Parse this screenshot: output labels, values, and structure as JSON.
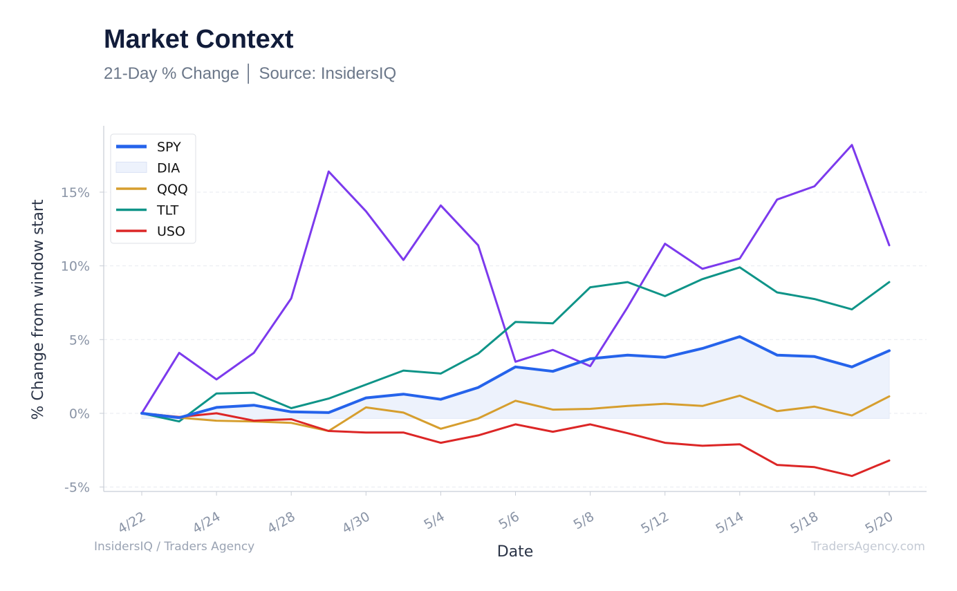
{
  "header": {
    "title": "Market Context",
    "subtitle": "21-Day % Change │ Source: InsidersIQ"
  },
  "footer": {
    "left": "InsidersIQ / Traders Agency",
    "right": "TradersAgency.com"
  },
  "chart_data": {
    "type": "line",
    "xlabel": "Date",
    "ylabel": "% Change from window start",
    "ylim": [
      -5.3,
      19.5
    ],
    "yticks": [
      -5,
      0,
      5,
      10,
      15
    ],
    "ytick_labels": [
      "-5%",
      "0%",
      "5%",
      "10%",
      "15%"
    ],
    "grid": "horizontal dashed",
    "legend_position": "top-left",
    "x_tick_labels": [
      {
        "index": 0,
        "label": "4/22"
      },
      {
        "index": 2,
        "label": "4/24"
      },
      {
        "index": 4,
        "label": "4/28"
      },
      {
        "index": 6,
        "label": "4/30"
      },
      {
        "index": 8,
        "label": "5/4"
      },
      {
        "index": 10,
        "label": "5/6"
      },
      {
        "index": 12,
        "label": "5/8"
      },
      {
        "index": 14,
        "label": "5/12"
      },
      {
        "index": 16,
        "label": "5/14"
      },
      {
        "index": 18,
        "label": "5/18"
      },
      {
        "index": 20,
        "label": "5/20"
      }
    ],
    "band": {
      "name": "DIA",
      "color": "#edf2fc",
      "lower": -0.35,
      "upper_series": "SPY"
    },
    "legend": [
      {
        "name": "SPY",
        "color": "#2563eb",
        "kind": "line"
      },
      {
        "name": "DIA",
        "color": "#edf2fc",
        "kind": "band"
      },
      {
        "name": "QQQ",
        "color": "#d69e2e",
        "kind": "line"
      },
      {
        "name": "TLT",
        "color": "#0f9488",
        "kind": "line"
      },
      {
        "name": "USO",
        "color": "#dc2626",
        "kind": "line"
      }
    ],
    "series": [
      {
        "name": "",
        "color": "#7c3aed",
        "width": 3,
        "values": [
          0.0,
          4.1,
          2.3,
          4.1,
          7.8,
          16.4,
          13.7,
          10.4,
          14.1,
          11.4,
          3.5,
          4.3,
          3.2,
          7.2,
          11.5,
          9.8,
          10.5,
          14.5,
          15.4,
          18.2,
          11.4
        ]
      },
      {
        "name": "TLT",
        "color": "#0f9488",
        "width": 3,
        "values": [
          0.0,
          -0.55,
          1.35,
          1.4,
          0.35,
          1.0,
          1.95,
          2.9,
          2.7,
          4.05,
          6.2,
          6.1,
          8.55,
          8.9,
          7.95,
          9.1,
          9.9,
          8.2,
          7.75,
          7.05,
          8.9
        ]
      },
      {
        "name": "QQQ",
        "color": "#d69e2e",
        "width": 3,
        "values": [
          0.0,
          -0.3,
          -0.5,
          -0.55,
          -0.65,
          -1.2,
          0.4,
          0.05,
          -1.05,
          -0.35,
          0.85,
          0.25,
          0.3,
          0.5,
          0.65,
          0.5,
          1.2,
          0.15,
          0.45,
          -0.15,
          1.15
        ]
      },
      {
        "name": "USO",
        "color": "#dc2626",
        "width": 3,
        "values": [
          0.0,
          -0.25,
          0.0,
          -0.5,
          -0.4,
          -1.2,
          -1.3,
          -1.3,
          -2.0,
          -1.5,
          -0.75,
          -1.25,
          -0.75,
          -1.35,
          -2.0,
          -2.2,
          -2.1,
          -3.5,
          -3.65,
          -4.25,
          -3.2
        ]
      },
      {
        "name": "SPY",
        "color": "#2563eb",
        "width": 4,
        "values": [
          0.0,
          -0.3,
          0.4,
          0.55,
          0.1,
          0.05,
          1.05,
          1.3,
          0.95,
          1.75,
          3.15,
          2.85,
          3.7,
          3.95,
          3.8,
          4.4,
          5.2,
          3.95,
          3.85,
          3.15,
          4.25
        ]
      }
    ]
  }
}
